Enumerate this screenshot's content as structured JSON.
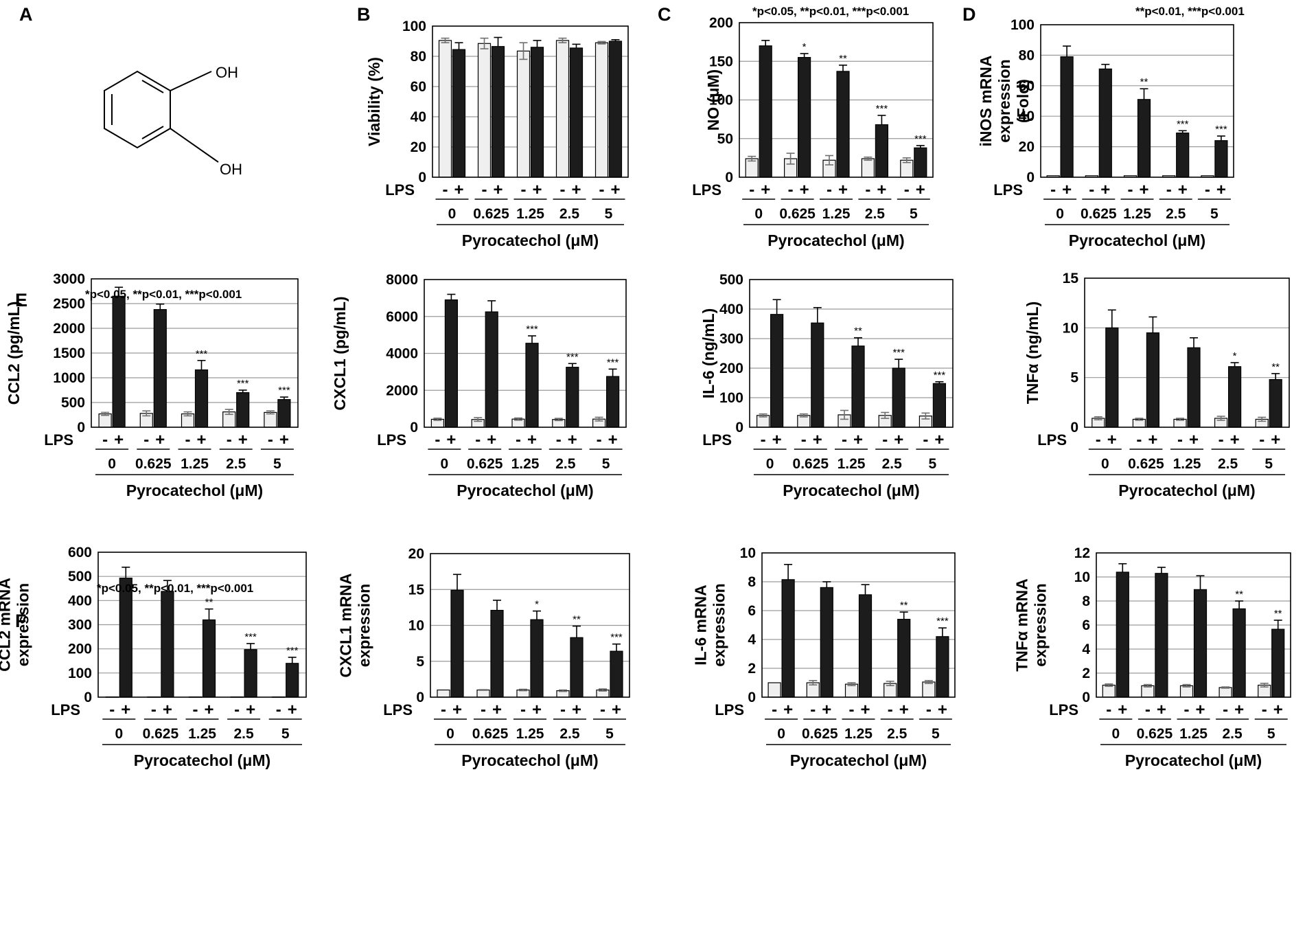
{
  "figure": {
    "panel_letters": [
      "A",
      "B",
      "C",
      "D",
      "E",
      "F"
    ],
    "colors": {
      "lps_minus": "#efefef",
      "lps_plus": "#1c1c1c",
      "gridline": "#9a9a9a",
      "error_minus": "#6e6e6e"
    }
  },
  "chemical": {
    "name": "Pyrocatechol",
    "labels": [
      "OH",
      "OH"
    ]
  },
  "chart_data": [
    {
      "type": "bar",
      "panel": "B",
      "ylabel": "Viability (%)",
      "ylim": [
        0,
        100
      ],
      "yticks": [
        "0",
        "20",
        "40",
        "60",
        "80",
        "100"
      ],
      "categories": [
        "0",
        "0.625",
        "1.25",
        "2.5",
        "5"
      ],
      "series": [
        {
          "name": "-",
          "values": [
            90.5,
            88.5,
            83.5,
            90.5,
            89
          ],
          "errors": [
            1.5,
            3.5,
            5.5,
            1.5,
            0.8
          ]
        },
        {
          "name": "+",
          "values": [
            84.5,
            86.5,
            86,
            85.5,
            90
          ],
          "errors": [
            4.5,
            6.0,
            4.5,
            2.5,
            1.0
          ]
        }
      ],
      "stars": [
        "",
        "",
        "",
        "",
        ""
      ],
      "group_label": "LPS",
      "xlabel": "Pyrocatechol (μM)",
      "note": ""
    },
    {
      "type": "bar",
      "panel": "C",
      "ylabel": "NO (μM)",
      "ylim": [
        0,
        200
      ],
      "yticks": [
        "0",
        "50",
        "100",
        "150",
        "200"
      ],
      "categories": [
        "0",
        "0.625",
        "1.25",
        "2.5",
        "5"
      ],
      "series": [
        {
          "name": "-",
          "values": [
            24,
            24,
            22,
            24,
            22
          ],
          "errors": [
            3,
            7,
            6,
            2,
            3
          ]
        },
        {
          "name": "+",
          "values": [
            170,
            155,
            137,
            68,
            38
          ],
          "errors": [
            7,
            5,
            8,
            12,
            3
          ]
        }
      ],
      "stars": [
        "",
        "*",
        "**",
        "***",
        "***"
      ],
      "group_label": "LPS",
      "xlabel": "Pyrocatechol (μM)",
      "note": "*p<0.05,  **p<0.01, ***p<0.001"
    },
    {
      "type": "bar",
      "panel": "D",
      "ylabel": "iNOS mRNA expression (Fold)",
      "ylim": [
        0,
        100
      ],
      "yticks": [
        "0",
        "20",
        "40",
        "60",
        "80",
        "100"
      ],
      "categories": [
        "0",
        "0.625",
        "1.25",
        "2.5",
        "5"
      ],
      "series": [
        {
          "name": "-",
          "values": [
            1,
            1,
            1,
            1,
            1
          ],
          "errors": [
            0,
            0,
            0,
            0,
            0
          ]
        },
        {
          "name": "+",
          "values": [
            79,
            71,
            51,
            29,
            24
          ],
          "errors": [
            7,
            3,
            7,
            1.5,
            3
          ]
        }
      ],
      "stars": [
        "",
        "",
        "**",
        "***",
        "***"
      ],
      "group_label": "LPS",
      "xlabel": "Pyrocatechol (μM)",
      "note": "**p<0.01, ***p<0.001"
    },
    {
      "type": "bar",
      "panel": "E",
      "ylabel": "CCL2 (pg/mL)",
      "ylim": [
        0,
        3000
      ],
      "yticks": [
        "0",
        "500",
        "1000",
        "1500",
        "2000",
        "2500",
        "3000"
      ],
      "categories": [
        "0",
        "0.625",
        "1.25",
        "2.5",
        "5"
      ],
      "series": [
        {
          "name": "-",
          "values": [
            270,
            280,
            270,
            310,
            300
          ],
          "errors": [
            30,
            50,
            40,
            50,
            30
          ]
        },
        {
          "name": "+",
          "values": [
            2650,
            2380,
            1160,
            700,
            560
          ],
          "errors": [
            180,
            110,
            190,
            50,
            50
          ]
        }
      ],
      "stars": [
        "",
        "",
        "***",
        "***",
        "***"
      ],
      "group_label": "LPS",
      "xlabel": "Pyrocatechol (μM)",
      "note": "*p<0.05, **p<0.01, ***p<0.001"
    },
    {
      "type": "bar",
      "ylabel": "CXCL1 (pg/mL)",
      "ylim": [
        0,
        8000
      ],
      "yticks": [
        "0",
        "2000",
        "4000",
        "6000",
        "8000"
      ],
      "categories": [
        "0",
        "0.625",
        "1.25",
        "2.5",
        "5"
      ],
      "series": [
        {
          "name": "-",
          "values": [
            430,
            420,
            440,
            420,
            440
          ],
          "errors": [
            60,
            100,
            60,
            60,
            100
          ]
        },
        {
          "name": "+",
          "values": [
            6900,
            6250,
            4550,
            3250,
            2750
          ],
          "errors": [
            300,
            600,
            400,
            200,
            400
          ]
        }
      ],
      "stars": [
        "",
        "",
        "***",
        "***",
        "***"
      ],
      "group_label": "LPS",
      "xlabel": "Pyrocatechol (μM)",
      "note": ""
    },
    {
      "type": "bar",
      "ylabel": "IL-6 (ng/mL)",
      "ylim": [
        0,
        500
      ],
      "yticks": [
        "0",
        "100",
        "200",
        "300",
        "400",
        "500"
      ],
      "categories": [
        "0",
        "0.625",
        "1.25",
        "2.5",
        "5"
      ],
      "series": [
        {
          "name": "-",
          "values": [
            40,
            40,
            42,
            40,
            38
          ],
          "errors": [
            5,
            5,
            15,
            10,
            10
          ]
        },
        {
          "name": "+",
          "values": [
            382,
            353,
            275,
            200,
            148
          ],
          "errors": [
            50,
            52,
            28,
            30,
            6
          ]
        }
      ],
      "stars": [
        "",
        "",
        "**",
        "***",
        "***"
      ],
      "group_label": "LPS",
      "xlabel": "Pyrocatechol (μM)",
      "note": ""
    },
    {
      "type": "bar",
      "ylabel": "TNFα (ng/mL)",
      "ylim": [
        0,
        15
      ],
      "yticks": [
        "0",
        "5",
        "10",
        "15"
      ],
      "categories": [
        "0",
        "0.625",
        "1.25",
        "2.5",
        "5"
      ],
      "series": [
        {
          "name": "-",
          "values": [
            0.9,
            0.8,
            0.8,
            0.9,
            0.8
          ],
          "errors": [
            0.15,
            0.1,
            0.1,
            0.2,
            0.2
          ]
        },
        {
          "name": "+",
          "values": [
            10,
            9.5,
            8,
            6.1,
            4.8
          ],
          "errors": [
            1.8,
            1.6,
            1.0,
            0.4,
            0.6
          ]
        }
      ],
      "stars": [
        "",
        "",
        "",
        "*",
        "**"
      ],
      "group_label": "LPS",
      "xlabel": "Pyrocatechol (μM)",
      "note": ""
    },
    {
      "type": "bar",
      "panel": "F",
      "ylabel": "CCL2 mRNA expression",
      "ylim": [
        0,
        600
      ],
      "yticks": [
        "0",
        "100",
        "200",
        "300",
        "400",
        "500",
        "600"
      ],
      "categories": [
        "0",
        "0.625",
        "1.25",
        "2.5",
        "5"
      ],
      "series": [
        {
          "name": "-",
          "values": [
            1,
            1,
            1,
            1,
            1
          ],
          "errors": [
            0,
            0,
            0,
            0,
            0
          ]
        },
        {
          "name": "+",
          "values": [
            493,
            438,
            320,
            197,
            140
          ],
          "errors": [
            45,
            45,
            45,
            25,
            25
          ]
        }
      ],
      "stars": [
        "",
        "",
        "**",
        "***",
        "***"
      ],
      "group_label": "LPS",
      "xlabel": "Pyrocatechol (μM)",
      "note": "*p<0.05, **p<0.01, ***p<0.001"
    },
    {
      "type": "bar",
      "ylabel": "CXCL1 mRNA expression",
      "ylim": [
        0,
        20
      ],
      "yticks": [
        "0",
        "5",
        "10",
        "15",
        "20"
      ],
      "categories": [
        "0",
        "0.625",
        "1.25",
        "2.5",
        "5"
      ],
      "series": [
        {
          "name": "-",
          "values": [
            1,
            1,
            1,
            0.9,
            1
          ],
          "errors": [
            0,
            0.05,
            0.1,
            0.1,
            0.15
          ]
        },
        {
          "name": "+",
          "values": [
            14.9,
            12.1,
            10.8,
            8.3,
            6.4
          ],
          "errors": [
            2.2,
            1.4,
            1.2,
            1.6,
            1.0
          ]
        }
      ],
      "stars": [
        "",
        "",
        "*",
        "**",
        "***"
      ],
      "group_label": "LPS",
      "xlabel": "Pyrocatechol (μM)",
      "note": ""
    },
    {
      "type": "bar",
      "ylabel": "IL-6 mRNA expression",
      "ylim": [
        0,
        10
      ],
      "yticks": [
        "0",
        "2",
        "4",
        "6",
        "8",
        "10"
      ],
      "categories": [
        "0",
        "0.625",
        "1.25",
        "2.5",
        "5"
      ],
      "series": [
        {
          "name": "-",
          "values": [
            1,
            1,
            0.9,
            0.95,
            1.05
          ],
          "errors": [
            0,
            0.15,
            0.1,
            0.15,
            0.1
          ]
        },
        {
          "name": "+",
          "values": [
            8.15,
            7.6,
            7.1,
            5.4,
            4.2
          ],
          "errors": [
            1.05,
            0.4,
            0.7,
            0.5,
            0.6
          ]
        }
      ],
      "stars": [
        "",
        "",
        "",
        "**",
        "***"
      ],
      "group_label": "LPS",
      "xlabel": "Pyrocatechol (μM)",
      "note": ""
    },
    {
      "type": "bar",
      "ylabel": "TNFα mRNA expression",
      "ylim": [
        0,
        12
      ],
      "yticks": [
        "0",
        "2",
        "4",
        "6",
        "8",
        "10",
        "12"
      ],
      "categories": [
        "0",
        "0.625",
        "1.25",
        "2.5",
        "5"
      ],
      "series": [
        {
          "name": "-",
          "values": [
            1,
            0.95,
            0.95,
            0.8,
            1.0
          ],
          "errors": [
            0.1,
            0.1,
            0.1,
            0.05,
            0.15
          ]
        },
        {
          "name": "+",
          "values": [
            10.4,
            10.3,
            8.95,
            7.35,
            5.65
          ],
          "errors": [
            0.7,
            0.5,
            1.15,
            0.65,
            0.75
          ]
        }
      ],
      "stars": [
        "",
        "",
        "",
        "**",
        "**"
      ],
      "group_label": "LPS",
      "xlabel": "Pyrocatechol (μM)",
      "note": ""
    }
  ]
}
